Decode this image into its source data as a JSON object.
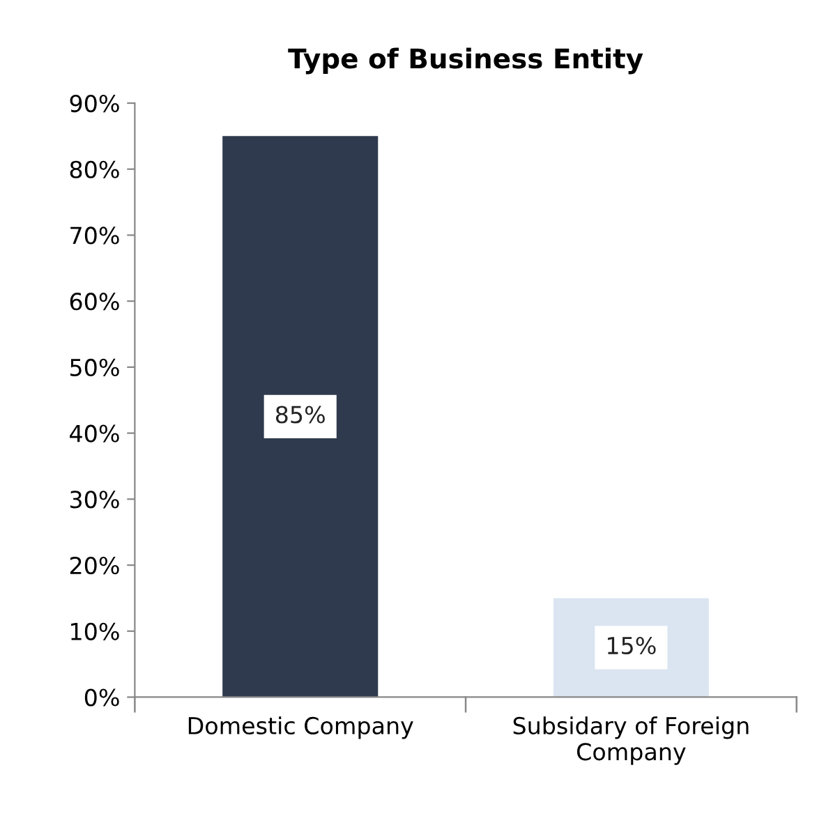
{
  "chart_data": {
    "type": "bar",
    "title": "Type of Business Entity",
    "categories": [
      "Domestic Company",
      "Subsidary of Foreign Company"
    ],
    "values": [
      85,
      15
    ],
    "colors": [
      "#2f3a4e",
      "#dbe5f1"
    ],
    "value_labels": [
      "85%",
      "15%"
    ],
    "ylim": [
      0,
      90
    ],
    "yticks": [
      {
        "value": 0,
        "label": "0%"
      },
      {
        "value": 10,
        "label": "10%"
      },
      {
        "value": 20,
        "label": "20%"
      },
      {
        "value": 30,
        "label": "30%"
      },
      {
        "value": 40,
        "label": "40%"
      },
      {
        "value": 50,
        "label": "50%"
      },
      {
        "value": 60,
        "label": "60%"
      },
      {
        "value": 70,
        "label": "70%"
      },
      {
        "value": 80,
        "label": "80%"
      },
      {
        "value": 90,
        "label": "90%"
      }
    ],
    "grid": false
  }
}
